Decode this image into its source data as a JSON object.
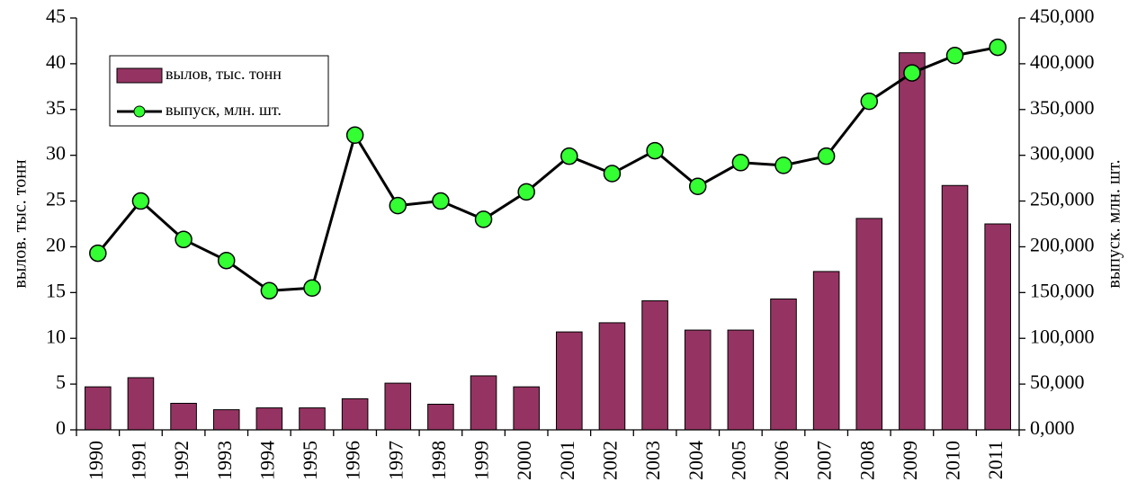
{
  "chart_data": {
    "type": "bar_line",
    "categories": [
      "1990",
      "1991",
      "1992",
      "1993",
      "1994",
      "1995",
      "1996",
      "1997",
      "1998",
      "1999",
      "2000",
      "2001",
      "2002",
      "2003",
      "2004",
      "2005",
      "2006",
      "2007",
      "2008",
      "2009",
      "2010",
      "2011"
    ],
    "series": [
      {
        "name": "вылов, тыс. тонн",
        "color": "#953462",
        "type": "bar",
        "values": [
          4.7,
          5.7,
          2.9,
          2.2,
          2.4,
          2.4,
          3.4,
          5.1,
          2.8,
          5.9,
          4.7,
          10.7,
          11.7,
          14.1,
          10.9,
          10.9,
          14.3,
          17.3,
          23.1,
          41.2,
          26.7,
          22.5
        ]
      },
      {
        "name": "выпуск, млн. шт.",
        "color": "#000000",
        "marker_color": "#33ff33",
        "type": "line",
        "axis": "y2",
        "values": [
          193000,
          250000,
          208000,
          185000,
          152000,
          155000,
          322000,
          245000,
          250000,
          230000,
          260000,
          299000,
          280000,
          305000,
          266000,
          292000,
          289000,
          299000,
          359000,
          390000,
          409000,
          418000
        ]
      }
    ],
    "ylabel": "вылов. тыс. тонн",
    "y2label": "выпуск. млн. шт.",
    "ylim": [
      0,
      45
    ],
    "yticks": [
      0,
      5,
      10,
      15,
      20,
      25,
      30,
      35,
      40,
      45
    ],
    "y2lim": [
      0,
      450000
    ],
    "y2ticks": [
      {
        "value": 0,
        "label": "0,000"
      },
      {
        "value": 50000,
        "label": "50,000"
      },
      {
        "value": 100000,
        "label": "100,000"
      },
      {
        "value": 150000,
        "label": "150,000"
      },
      {
        "value": 200000,
        "label": "200,000"
      },
      {
        "value": 250000,
        "label": "250,000"
      },
      {
        "value": 300000,
        "label": "300,000"
      },
      {
        "value": 350000,
        "label": "350,000"
      },
      {
        "value": 400000,
        "label": "400,000"
      },
      {
        "value": 450000,
        "label": "450,000"
      }
    ],
    "legend": "upper left"
  }
}
